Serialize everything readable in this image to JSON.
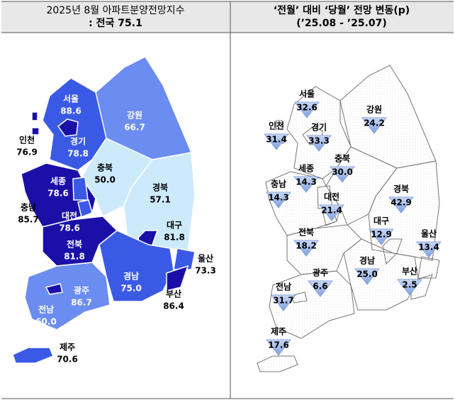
{
  "left": {
    "header": {
      "title": "2025년 8월 아파트분양전망지수",
      "subtitle": ": 전국 75.1"
    },
    "regions": [
      {
        "name": "서울",
        "value": "88.6"
      },
      {
        "name": "인천",
        "value": "76.9"
      },
      {
        "name": "경기",
        "value": "78.8"
      },
      {
        "name": "강원",
        "value": "66.7"
      },
      {
        "name": "세종",
        "value": "78.6"
      },
      {
        "name": "충북",
        "value": "50.0"
      },
      {
        "name": "충남",
        "value": "85.7"
      },
      {
        "name": "대전",
        "value": "78.6"
      },
      {
        "name": "경북",
        "value": "57.1"
      },
      {
        "name": "대구",
        "value": "81.8"
      },
      {
        "name": "전북",
        "value": "81.8"
      },
      {
        "name": "울산",
        "value": "73.3"
      },
      {
        "name": "경남",
        "value": "75.0"
      },
      {
        "name": "부산",
        "value": "86.4"
      },
      {
        "name": "광주",
        "value": "86.7"
      },
      {
        "name": "전남",
        "value": "60.0"
      },
      {
        "name": "제주",
        "value": "70.6"
      }
    ]
  },
  "right": {
    "header": {
      "title": "‘전월’ 대비 ‘당월’ 전망 변동(p)",
      "subtitle": "(’25.08  -  ’25.07)"
    },
    "regions": [
      {
        "name": "서울",
        "value": "32.6"
      },
      {
        "name": "인천",
        "value": "31.4"
      },
      {
        "name": "경기",
        "value": "33.3"
      },
      {
        "name": "강원",
        "value": "24.2"
      },
      {
        "name": "세종",
        "value": "14.3"
      },
      {
        "name": "충북",
        "value": "30.0"
      },
      {
        "name": "충남",
        "value": "14.3"
      },
      {
        "name": "대전",
        "value": "21.4"
      },
      {
        "name": "경북",
        "value": "42.9"
      },
      {
        "name": "대구",
        "value": "12.9"
      },
      {
        "name": "전북",
        "value": "18.2"
      },
      {
        "name": "울산",
        "value": "13.4"
      },
      {
        "name": "경남",
        "value": "25.0"
      },
      {
        "name": "부산",
        "value": "2.5"
      },
      {
        "name": "광주",
        "value": "6.6"
      },
      {
        "name": "전남",
        "value": "31.7"
      },
      {
        "name": "제주",
        "value": "17.6"
      }
    ]
  }
}
